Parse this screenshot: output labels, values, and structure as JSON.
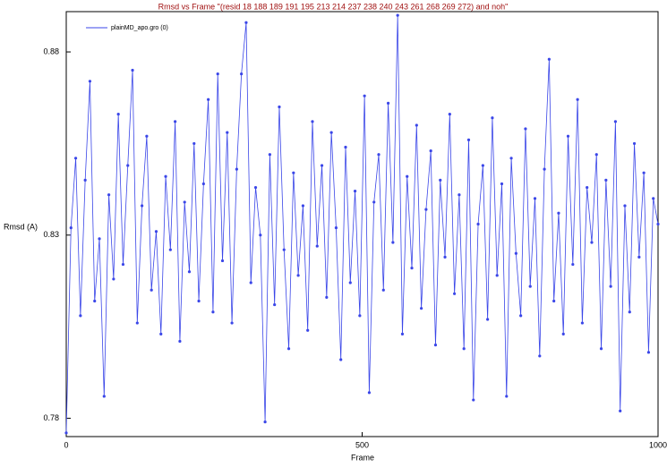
{
  "chart_data": {
    "type": "line",
    "title": "Rmsd vs Frame \"(resid 18 188 189 191 195 213 214 237 238 240 243 261 268 269 272) and noh\"",
    "x_label": "Frame",
    "y_label": "Rmsd (A)",
    "x": [
      0,
      8,
      16,
      24,
      32,
      40,
      48,
      56,
      64,
      72,
      80,
      88,
      96,
      104,
      112,
      120,
      128,
      136,
      144,
      152,
      160,
      168,
      176,
      184,
      192,
      200,
      208,
      216,
      224,
      232,
      240,
      248,
      256,
      264,
      272,
      280,
      288,
      296,
      304,
      312,
      320,
      328,
      336,
      344,
      352,
      360,
      368,
      376,
      384,
      392,
      400,
      408,
      416,
      424,
      432,
      440,
      448,
      456,
      464,
      472,
      480,
      488,
      496,
      504,
      512,
      520,
      528,
      536,
      544,
      552,
      560,
      568,
      576,
      584,
      592,
      600,
      608,
      616,
      624,
      632,
      640,
      648,
      656,
      664,
      672,
      680,
      688,
      696,
      704,
      712,
      720,
      728,
      736,
      744,
      752,
      760,
      768,
      776,
      784,
      792,
      800,
      808,
      816,
      824,
      832,
      840,
      848,
      856,
      864,
      872,
      880,
      888,
      896,
      904,
      912,
      920,
      928,
      936,
      944,
      952,
      960,
      968,
      976,
      984,
      992,
      1000
    ],
    "series": [
      {
        "name": "plainMD_apo.gro (0)",
        "color": "#3a46e8",
        "values": [
          0.776,
          0.832,
          0.851,
          0.808,
          0.845,
          0.872,
          0.812,
          0.829,
          0.786,
          0.841,
          0.818,
          0.863,
          0.822,
          0.849,
          0.875,
          0.806,
          0.838,
          0.857,
          0.815,
          0.831,
          0.803,
          0.846,
          0.826,
          0.861,
          0.801,
          0.839,
          0.82,
          0.855,
          0.812,
          0.844,
          0.867,
          0.809,
          0.874,
          0.823,
          0.858,
          0.806,
          0.848,
          0.874,
          0.888,
          0.817,
          0.843,
          0.83,
          0.779,
          0.852,
          0.811,
          0.865,
          0.826,
          0.799,
          0.847,
          0.819,
          0.838,
          0.804,
          0.861,
          0.827,
          0.849,
          0.813,
          0.858,
          0.832,
          0.796,
          0.854,
          0.817,
          0.842,
          0.808,
          0.868,
          0.787,
          0.839,
          0.852,
          0.815,
          0.866,
          0.828,
          0.89,
          0.803,
          0.846,
          0.821,
          0.86,
          0.81,
          0.837,
          0.853,
          0.8,
          0.845,
          0.824,
          0.863,
          0.814,
          0.841,
          0.799,
          0.856,
          0.785,
          0.833,
          0.849,
          0.807,
          0.862,
          0.819,
          0.844,
          0.786,
          0.851,
          0.825,
          0.808,
          0.859,
          0.816,
          0.84,
          0.797,
          0.848,
          0.878,
          0.812,
          0.836,
          0.803,
          0.857,
          0.822,
          0.867,
          0.806,
          0.843,
          0.828,
          0.852,
          0.799,
          0.845,
          0.816,
          0.861,
          0.782,
          0.838,
          0.809,
          0.855,
          0.824,
          0.847,
          0.798,
          0.84,
          0.833
        ]
      }
    ],
    "xlim": [
      0,
      1000
    ],
    "xticks": [
      0,
      500,
      1000
    ],
    "ylim": [
      0.775,
      0.891
    ],
    "yticks": [
      0.78,
      0.83,
      0.88
    ],
    "legend": "upper left"
  }
}
